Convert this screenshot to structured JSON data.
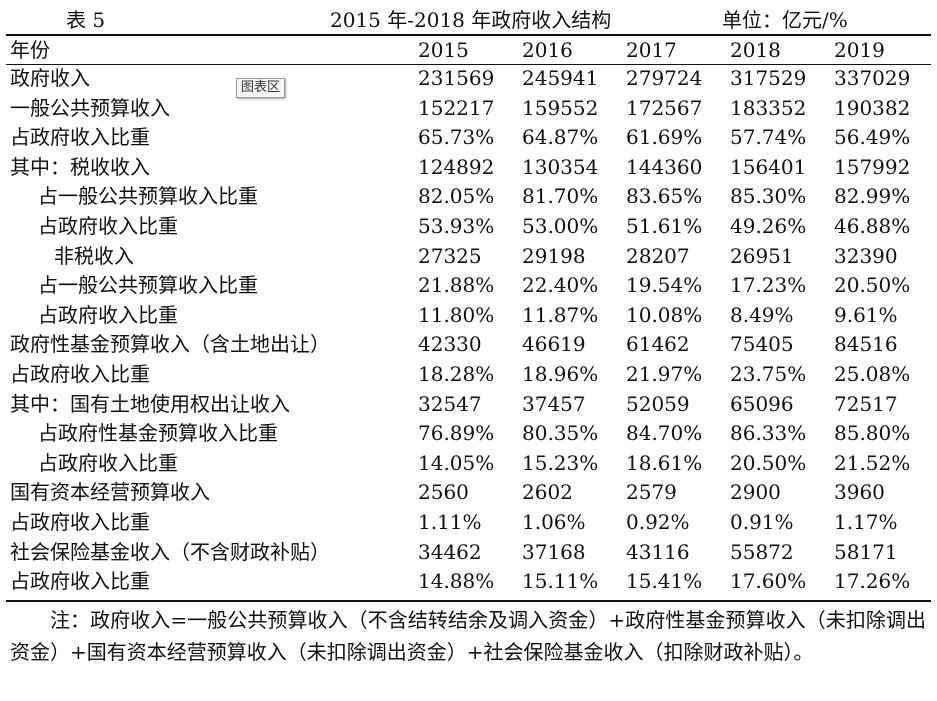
{
  "caption": {
    "label": "表 5",
    "title": "2015 年-2018 年政府收入结构",
    "unit": "单位：亿元/%"
  },
  "badge": "图表区",
  "table": {
    "header": [
      "年份",
      "2015",
      "2016",
      "2017",
      "2018",
      "2019"
    ],
    "rows": [
      {
        "label": "政府收入",
        "values": [
          "231569",
          "245941",
          "279724",
          "317529",
          "337029"
        ]
      },
      {
        "label": "一般公共预算收入",
        "values": [
          "152217",
          "159552",
          "172567",
          "183352",
          "190382"
        ]
      },
      {
        "label": "占政府收入比重",
        "values": [
          "65.73%",
          "64.87%",
          "61.69%",
          "57.74%",
          "56.49%"
        ]
      },
      {
        "label": "其中：税收收入",
        "values": [
          "124892",
          "130354",
          "144360",
          "156401",
          "157992"
        ]
      },
      {
        "label": "占一般公共预算收入比重",
        "values": [
          "82.05%",
          "81.70%",
          "83.65%",
          "85.30%",
          "82.99%"
        ]
      },
      {
        "label": "占政府收入比重",
        "values": [
          "53.93%",
          "53.00%",
          "51.61%",
          "49.26%",
          "46.88%"
        ]
      },
      {
        "label": "非税收入",
        "values": [
          "27325",
          "29198",
          "28207",
          "26951",
          "32390"
        ]
      },
      {
        "label": "占一般公共预算收入比重",
        "values": [
          "21.88%",
          "22.40%",
          "19.54%",
          "17.23%",
          "20.50%"
        ]
      },
      {
        "label": "占政府收入比重",
        "values": [
          "11.80%",
          "11.87%",
          "10.08%",
          "8.49%",
          "9.61%"
        ]
      },
      {
        "label": "政府性基金预算收入（含土地出让）",
        "values": [
          "42330",
          "46619",
          "61462",
          "75405",
          "84516"
        ]
      },
      {
        "label": "占政府收入比重",
        "values": [
          "18.28%",
          "18.96%",
          "21.97%",
          "23.75%",
          "25.08%"
        ]
      },
      {
        "label": "其中：国有土地使用权出让收入",
        "values": [
          "32547",
          "37457",
          "52059",
          "65096",
          "72517"
        ]
      },
      {
        "label": "占政府性基金预算收入比重",
        "values": [
          "76.89%",
          "80.35%",
          "84.70%",
          "86.33%",
          "85.80%"
        ]
      },
      {
        "label": "占政府收入比重",
        "values": [
          "14.05%",
          "15.23%",
          "18.61%",
          "20.50%",
          "21.52%"
        ]
      },
      {
        "label": "国有资本经营预算收入",
        "values": [
          "2560",
          "2602",
          "2579",
          "2900",
          "3960"
        ]
      },
      {
        "label": "占政府收入比重",
        "values": [
          "1.11%",
          "1.06%",
          "0.92%",
          "0.91%",
          "1.17%"
        ]
      },
      {
        "label": "社会保险基金收入（不含财政补贴）",
        "values": [
          "34462",
          "37168",
          "43116",
          "55872",
          "58171"
        ]
      },
      {
        "label": "占政府收入比重",
        "values": [
          "14.88%",
          "15.11%",
          "15.41%",
          "17.60%",
          "17.26%"
        ]
      }
    ]
  },
  "note": "注：政府收入=一般公共预算收入（不含结转结余及调入资金）+政府性基金预算收入（未扣除调出资金）+国有资本经营预算收入（未扣除调出资金）+社会保险基金收入（扣除财政补贴）。"
}
